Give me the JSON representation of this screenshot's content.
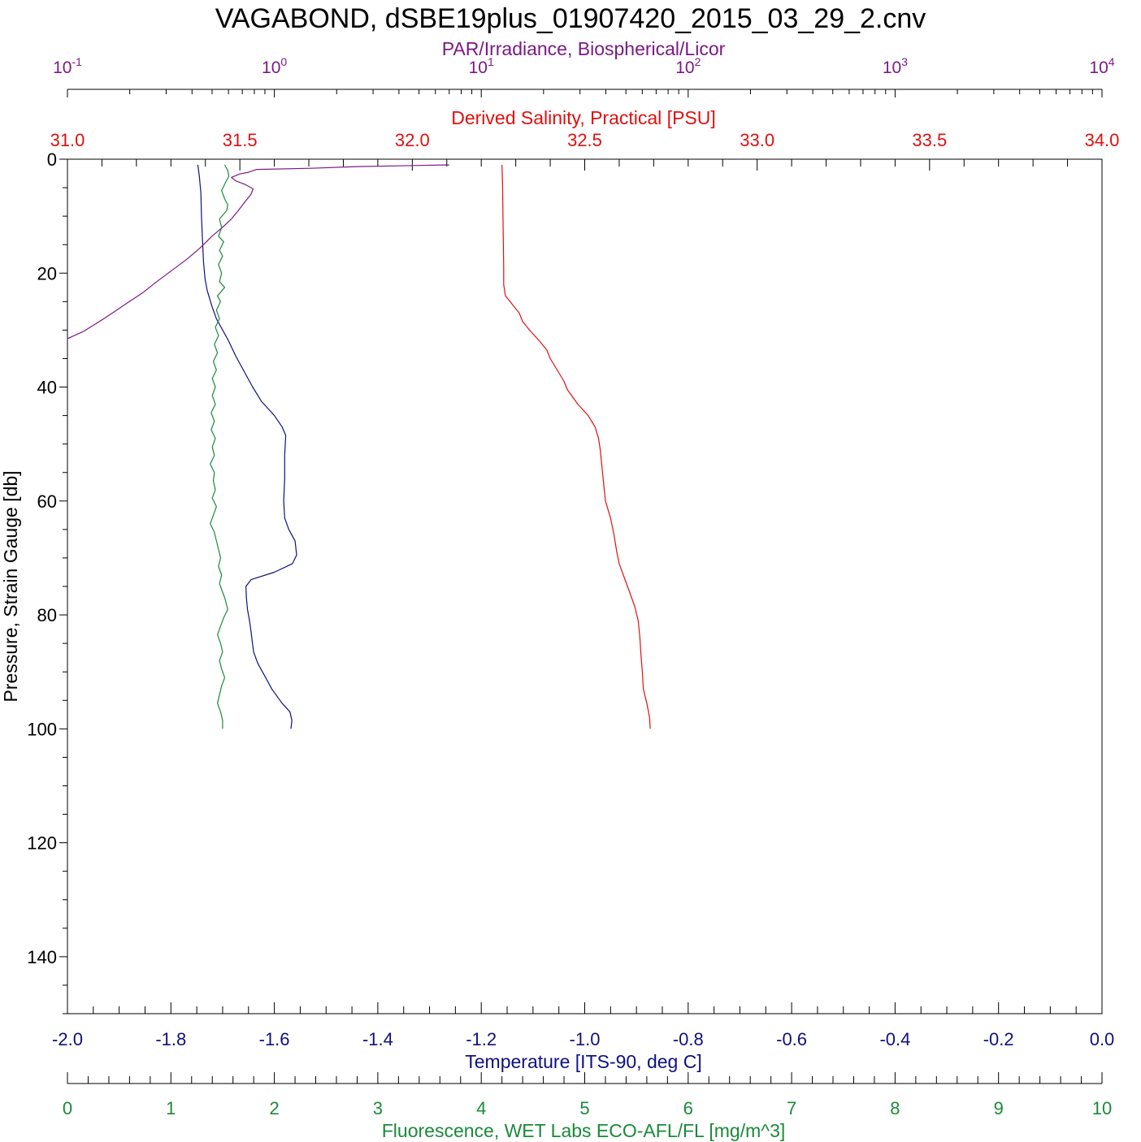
{
  "chart_data": {
    "type": "line",
    "title": "VAGABOND, dSBE19plus_01907420_2015_03_29_2.cnv",
    "y_axis": {
      "label": "Pressure, Strain Gauge [db]",
      "range": [
        0,
        150
      ],
      "reversed": true,
      "ticks": [
        "0",
        "20",
        "40",
        "60",
        "80",
        "100",
        "120",
        "140"
      ]
    },
    "axes": {
      "par": {
        "label": "PAR/Irradiance, Biospherical/Licor",
        "range": [
          0.1,
          10000
        ],
        "scale": "log",
        "color": "#7b1a84",
        "ticks": [
          {
            "base": "10",
            "exp": "-1"
          },
          {
            "base": "10",
            "exp": "0"
          },
          {
            "base": "10",
            "exp": "1"
          },
          {
            "base": "10",
            "exp": "2"
          },
          {
            "base": "10",
            "exp": "3"
          },
          {
            "base": "10",
            "exp": "4"
          }
        ]
      },
      "salinity": {
        "label": "Derived Salinity, Practical [PSU]",
        "range": [
          31.0,
          34.0
        ],
        "color": "#e01010",
        "ticks": [
          "31.0",
          "31.5",
          "32.0",
          "32.5",
          "33.0",
          "33.5",
          "34.0"
        ]
      },
      "temperature": {
        "label": "Temperature [ITS-90, deg C]",
        "range": [
          -2.0,
          0.0
        ],
        "color": "#101080",
        "ticks": [
          "-2.0",
          "-1.8",
          "-1.6",
          "-1.4",
          "-1.2",
          "-1.0",
          "-0.8",
          "-0.6",
          "-0.4",
          "-0.2",
          "0.0"
        ]
      },
      "fluorescence": {
        "label": "Fluorescence, WET Labs ECO-AFL/FL [mg/m^3]",
        "range": [
          0,
          10
        ],
        "color": "#1a8a3a",
        "ticks": [
          "0",
          "1",
          "2",
          "3",
          "4",
          "5",
          "6",
          "7",
          "8",
          "9",
          "10"
        ]
      }
    },
    "series": [
      {
        "axis": "temperature",
        "color": "#101080",
        "points": [
          [
            -1.748,
            1
          ],
          [
            -1.745,
            3
          ],
          [
            -1.742,
            6
          ],
          [
            -1.741,
            10
          ],
          [
            -1.739,
            14
          ],
          [
            -1.737,
            18
          ],
          [
            -1.734,
            21
          ],
          [
            -1.73,
            23
          ],
          [
            -1.725,
            24.5
          ],
          [
            -1.72,
            26
          ],
          [
            -1.712,
            28
          ],
          [
            -1.7,
            30
          ],
          [
            -1.688,
            32
          ],
          [
            -1.675,
            34.5
          ],
          [
            -1.66,
            37
          ],
          [
            -1.642,
            40
          ],
          [
            -1.625,
            42.5
          ],
          [
            -1.6,
            45
          ],
          [
            -1.585,
            47
          ],
          [
            -1.578,
            48.5
          ],
          [
            -1.58,
            52
          ],
          [
            -1.58,
            56
          ],
          [
            -1.582,
            60
          ],
          [
            -1.58,
            63
          ],
          [
            -1.572,
            65
          ],
          [
            -1.56,
            67
          ],
          [
            -1.557,
            69.5
          ],
          [
            -1.565,
            71
          ],
          [
            -1.6,
            72.5
          ],
          [
            -1.645,
            73.8
          ],
          [
            -1.655,
            75
          ],
          [
            -1.654,
            77
          ],
          [
            -1.652,
            79
          ],
          [
            -1.648,
            81
          ],
          [
            -1.645,
            83
          ],
          [
            -1.643,
            84.5
          ],
          [
            -1.64,
            86.5
          ],
          [
            -1.632,
            88.5
          ],
          [
            -1.62,
            90.5
          ],
          [
            -1.605,
            93
          ],
          [
            -1.585,
            95.5
          ],
          [
            -1.57,
            97
          ],
          [
            -1.566,
            98.5
          ],
          [
            -1.568,
            100
          ]
        ]
      },
      {
        "axis": "salinity",
        "color": "#e01010",
        "points": [
          [
            32.26,
            1
          ],
          [
            32.262,
            5
          ],
          [
            32.263,
            10
          ],
          [
            32.264,
            15
          ],
          [
            32.265,
            19
          ],
          [
            32.265,
            22
          ],
          [
            32.27,
            24
          ],
          [
            32.29,
            25.5
          ],
          [
            32.31,
            27
          ],
          [
            32.32,
            28.5
          ],
          [
            32.34,
            30
          ],
          [
            32.37,
            32
          ],
          [
            32.39,
            33.5
          ],
          [
            32.4,
            35
          ],
          [
            32.42,
            37
          ],
          [
            32.44,
            39
          ],
          [
            32.45,
            40.5
          ],
          [
            32.48,
            43
          ],
          [
            32.51,
            45
          ],
          [
            32.53,
            47
          ],
          [
            32.54,
            49
          ],
          [
            32.545,
            51
          ],
          [
            32.55,
            54
          ],
          [
            32.555,
            57
          ],
          [
            32.56,
            60
          ],
          [
            32.575,
            63
          ],
          [
            32.585,
            66
          ],
          [
            32.593,
            69
          ],
          [
            32.6,
            71
          ],
          [
            32.615,
            73.5
          ],
          [
            32.63,
            76
          ],
          [
            32.645,
            78.5
          ],
          [
            32.655,
            81
          ],
          [
            32.66,
            84
          ],
          [
            32.663,
            87
          ],
          [
            32.667,
            90
          ],
          [
            32.67,
            93
          ],
          [
            32.68,
            95.5
          ],
          [
            32.688,
            98
          ],
          [
            32.69,
            100
          ]
        ]
      },
      {
        "axis": "fluorescence",
        "color": "#1a8a3a",
        "points": [
          [
            1.52,
            1
          ],
          [
            1.55,
            2
          ],
          [
            1.56,
            3
          ],
          [
            1.53,
            4
          ],
          [
            1.49,
            5.5
          ],
          [
            1.52,
            7
          ],
          [
            1.55,
            8
          ],
          [
            1.54,
            9
          ],
          [
            1.47,
            10.5
          ],
          [
            1.49,
            12
          ],
          [
            1.46,
            13.5
          ],
          [
            1.51,
            14.5
          ],
          [
            1.47,
            16
          ],
          [
            1.5,
            17
          ],
          [
            1.46,
            18.5
          ],
          [
            1.49,
            20
          ],
          [
            1.47,
            21.5
          ],
          [
            1.52,
            22.5
          ],
          [
            1.45,
            24
          ],
          [
            1.48,
            25
          ],
          [
            1.44,
            26.5
          ],
          [
            1.47,
            28
          ],
          [
            1.43,
            29.5
          ],
          [
            1.46,
            31
          ],
          [
            1.42,
            32.5
          ],
          [
            1.45,
            34
          ],
          [
            1.41,
            35.5
          ],
          [
            1.44,
            37
          ],
          [
            1.4,
            38.5
          ],
          [
            1.43,
            40
          ],
          [
            1.4,
            41.5
          ],
          [
            1.43,
            43
          ],
          [
            1.39,
            44.5
          ],
          [
            1.42,
            46
          ],
          [
            1.39,
            47.5
          ],
          [
            1.43,
            49
          ],
          [
            1.4,
            50.5
          ],
          [
            1.42,
            52
          ],
          [
            1.38,
            53.5
          ],
          [
            1.42,
            55
          ],
          [
            1.41,
            56.5
          ],
          [
            1.43,
            58
          ],
          [
            1.4,
            59.5
          ],
          [
            1.44,
            61
          ],
          [
            1.41,
            62.5
          ],
          [
            1.38,
            64
          ],
          [
            1.42,
            65.5
          ],
          [
            1.44,
            67
          ],
          [
            1.46,
            68.5
          ],
          [
            1.48,
            70
          ],
          [
            1.46,
            71.5
          ],
          [
            1.49,
            73
          ],
          [
            1.47,
            74.5
          ],
          [
            1.5,
            76
          ],
          [
            1.52,
            77
          ],
          [
            1.55,
            79
          ],
          [
            1.51,
            80.5
          ],
          [
            1.48,
            82
          ],
          [
            1.45,
            83.5
          ],
          [
            1.48,
            85
          ],
          [
            1.5,
            86.5
          ],
          [
            1.47,
            88
          ],
          [
            1.49,
            89.5
          ],
          [
            1.52,
            91
          ],
          [
            1.49,
            92.5
          ],
          [
            1.47,
            94
          ],
          [
            1.45,
            95.5
          ],
          [
            1.48,
            97
          ],
          [
            1.5,
            98.5
          ],
          [
            1.5,
            100
          ]
        ]
      },
      {
        "axis": "par",
        "color": "#7b1a84",
        "points": [
          [
            7.0,
            1.0
          ],
          [
            2.5,
            1.3
          ],
          [
            1.5,
            1.6
          ],
          [
            0.82,
            1.8
          ],
          [
            0.75,
            2.3
          ],
          [
            0.68,
            2.6
          ],
          [
            0.62,
            3.2
          ],
          [
            0.65,
            3.8
          ],
          [
            0.72,
            4.4
          ],
          [
            0.79,
            5.2
          ],
          [
            0.77,
            6.2
          ],
          [
            0.72,
            7.5
          ],
          [
            0.67,
            9
          ],
          [
            0.62,
            10.5
          ],
          [
            0.56,
            12
          ],
          [
            0.5,
            13.5
          ],
          [
            0.44,
            15.5
          ],
          [
            0.38,
            17.5
          ],
          [
            0.32,
            19.5
          ],
          [
            0.27,
            21.5
          ],
          [
            0.23,
            23.5
          ],
          [
            0.19,
            25.5
          ],
          [
            0.15,
            28
          ],
          [
            0.12,
            30.2
          ],
          [
            0.1,
            31.5
          ]
        ]
      }
    ],
    "grid": false
  }
}
